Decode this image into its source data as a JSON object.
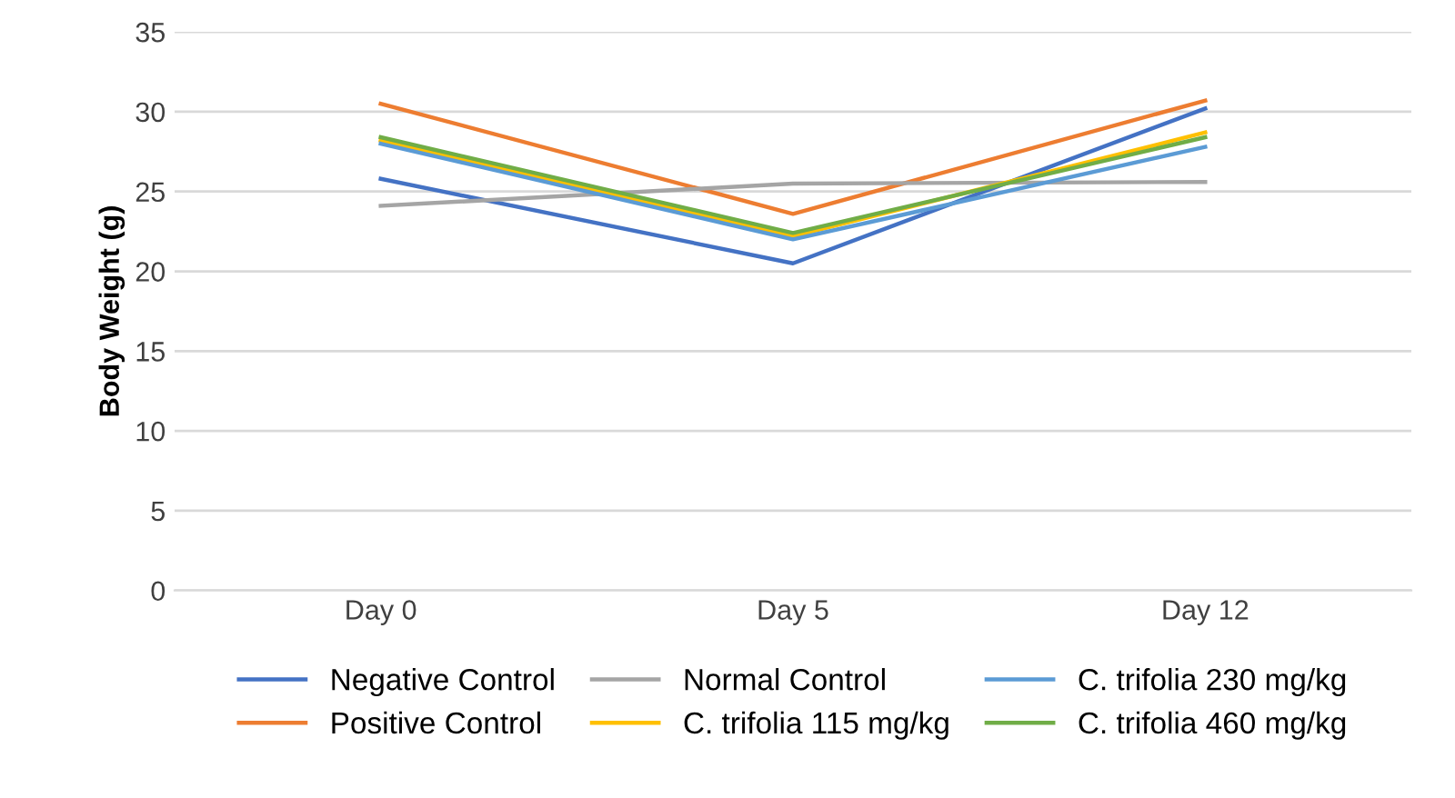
{
  "chart_data": {
    "type": "line",
    "ylabel": "Body Weight (g)",
    "categories": [
      "Day 0",
      "Day 5",
      "Day 12"
    ],
    "ylim": [
      0,
      35
    ],
    "yticks": [
      0,
      5,
      10,
      15,
      20,
      25,
      30,
      35
    ],
    "grid": "y",
    "legend": "bottom",
    "marker": "none",
    "series": [
      {
        "name": "Negative Control",
        "color": "#4472c4",
        "values": [
          25.8,
          20.5,
          30.2
        ]
      },
      {
        "name": "Positive Control",
        "color": "#ed7d31",
        "values": [
          30.5,
          23.6,
          30.7
        ]
      },
      {
        "name": "Normal Control",
        "color": "#a5a5a5",
        "values": [
          24.1,
          25.5,
          25.6
        ]
      },
      {
        "name": "C. trifolia 115 mg/kg",
        "color": "#ffc000",
        "values": [
          28.2,
          22.2,
          28.7
        ]
      },
      {
        "name": "C. trifolia 230 mg/kg",
        "color": "#5b9bd5",
        "values": [
          28.0,
          22.0,
          27.8
        ]
      },
      {
        "name": "C. trifolia 460 mg/kg",
        "color": "#70ad47",
        "values": [
          28.4,
          22.4,
          28.4
        ]
      }
    ]
  }
}
